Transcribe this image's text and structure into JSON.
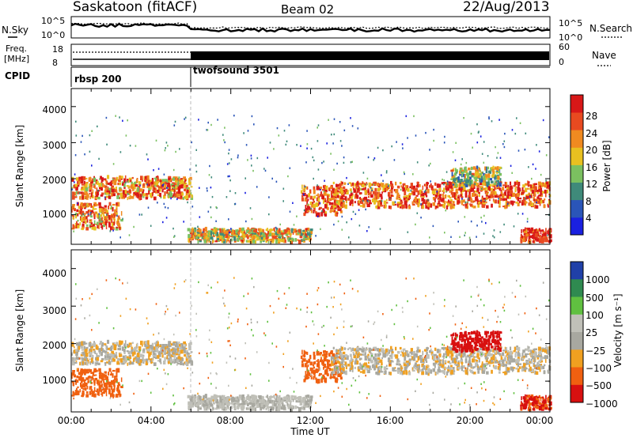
{
  "header": {
    "station": "Saskatoon (fitACF)",
    "beam": "Beam 02",
    "date": "22/Aug/2013"
  },
  "noise_panel": {
    "left_label": "N.Sky",
    "right_label": "N.Search",
    "left_ticks": [
      "10^5",
      "10^0"
    ],
    "right_ticks": [
      "10^5",
      "10^0"
    ]
  },
  "freq_panel": {
    "left_label_1": "Freq.",
    "left_label_2": "[MHz]",
    "right_label": "Nave",
    "left_ticks": [
      "18",
      "8"
    ],
    "right_ticks": [
      "60",
      "0"
    ]
  },
  "cpid_panel": {
    "label": "CPID",
    "programs": [
      {
        "name": "rbsp 200",
        "start_hour": 0,
        "end_hour": 6
      },
      {
        "name": "twofsound 3501",
        "start_hour": 6,
        "end_hour": 24
      }
    ]
  },
  "power_panel": {
    "ylabel": "Slant Range [km]",
    "yticks": [
      "1000",
      "2000",
      "3000",
      "4000"
    ],
    "colorbar_label": "Power [dB]",
    "colorbar_ticks": [
      "4",
      "8",
      "12",
      "16",
      "20",
      "24",
      "28"
    ]
  },
  "velocity_panel": {
    "ylabel": "Slant Range [km]",
    "yticks": [
      "1000",
      "2000",
      "3000",
      "4000"
    ],
    "colorbar_label": "Velocity [m s⁻¹]",
    "colorbar_ticks": [
      "1000",
      "500",
      "100",
      "25",
      "−25",
      "−100",
      "−500",
      "−1000"
    ]
  },
  "x_axis": {
    "label": "Time UT",
    "ticks": [
      "00:00",
      "04:00",
      "08:00",
      "12:00",
      "16:00",
      "20:00",
      "00:00"
    ]
  },
  "colors": {
    "power_scale": [
      "#1a20e0",
      "#2a55b8",
      "#3f8a7a",
      "#7bc060",
      "#e8c020",
      "#f08a20",
      "#e84a20",
      "#d81818"
    ],
    "velocity_scale": [
      "#2040a8",
      "#2f8a50",
      "#60c040",
      "#c0c0b8",
      "#a8a8a0",
      "#f0a020",
      "#f06010",
      "#d81010"
    ]
  },
  "chart_data": {
    "type": "heatmap",
    "x_range_hours": [
      0,
      24
    ],
    "y_range_km": [
      180,
      4500
    ],
    "noise_sky_ylim": [
      1,
      100000
    ],
    "freq_ylim_mhz": [
      8,
      18
    ],
    "nave_ylim": [
      0,
      60
    ],
    "power_clim_db": [
      0,
      30
    ],
    "velocity_levels": [
      -1000,
      -500,
      -100,
      -25,
      25,
      100,
      500,
      1000
    ],
    "echo_bands": [
      {
        "t_start": 0.0,
        "t_end": 6.0,
        "range_start_km": 1450,
        "range_end_km": 2050,
        "power_db": 22,
        "velocity": 0
      },
      {
        "t_start": 0.0,
        "t_end": 2.5,
        "range_start_km": 600,
        "range_end_km": 1300,
        "power_db": 22,
        "velocity": -300
      },
      {
        "t_start": 5.8,
        "t_end": 12.0,
        "range_start_km": 250,
        "range_end_km": 600,
        "power_db": 18,
        "velocity": 40
      },
      {
        "t_start": 11.5,
        "t_end": 13.5,
        "range_start_km": 1000,
        "range_end_km": 1800,
        "power_db": 24,
        "velocity": -400
      },
      {
        "t_start": 13.0,
        "t_end": 24.0,
        "range_start_km": 1200,
        "range_end_km": 1900,
        "power_db": 24,
        "velocity": 0
      },
      {
        "t_start": 19.0,
        "t_end": 21.5,
        "range_start_km": 1800,
        "range_end_km": 2300,
        "power_db": 14,
        "velocity": -600
      },
      {
        "t_start": 22.5,
        "t_end": 24.0,
        "range_start_km": 250,
        "range_end_km": 600,
        "power_db": 26,
        "velocity": -500
      }
    ]
  }
}
